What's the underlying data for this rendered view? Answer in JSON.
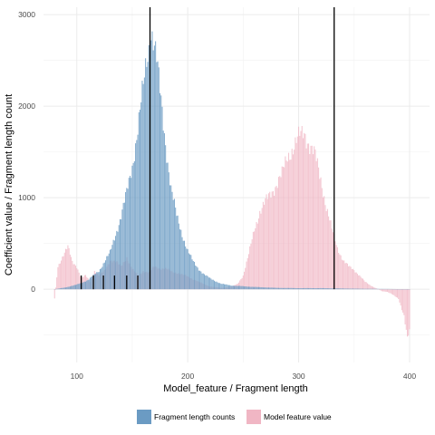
{
  "chart_data": {
    "type": "bar",
    "xlabel": "Model_feature / Fragment length",
    "ylabel": "Coefficient value / Fragment length count",
    "xlim": [
      70,
      418
    ],
    "ylim": [
      -800,
      3080
    ],
    "x_ticks": [
      100,
      200,
      300,
      400
    ],
    "y_ticks": [
      0,
      1000,
      2000,
      3000
    ],
    "x_minor_ticks": [
      150,
      250,
      350
    ],
    "y_minor_ticks": [
      -500,
      500,
      1500,
      2500
    ],
    "grid": true,
    "legend_position": "bottom",
    "series": [
      {
        "name": "Fragment length counts",
        "color": "#6b9bc3",
        "x_range": [
          80,
          400
        ],
        "anchors": [
          [
            80,
            0
          ],
          [
            90,
            20
          ],
          [
            100,
            50
          ],
          [
            110,
            100
          ],
          [
            120,
            200
          ],
          [
            130,
            400
          ],
          [
            140,
            800
          ],
          [
            145,
            1050
          ],
          [
            150,
            1350
          ],
          [
            155,
            1750
          ],
          [
            160,
            2200
          ],
          [
            163,
            2500
          ],
          [
            165,
            2650
          ],
          [
            167,
            2850
          ],
          [
            169,
            2750
          ],
          [
            172,
            2500
          ],
          [
            175,
            2150
          ],
          [
            180,
            1600
          ],
          [
            185,
            1100
          ],
          [
            190,
            800
          ],
          [
            195,
            600
          ],
          [
            200,
            420
          ],
          [
            205,
            300
          ],
          [
            210,
            220
          ],
          [
            215,
            160
          ],
          [
            220,
            120
          ],
          [
            230,
            60
          ],
          [
            240,
            40
          ],
          [
            260,
            25
          ],
          [
            280,
            15
          ],
          [
            300,
            12
          ],
          [
            320,
            12
          ],
          [
            340,
            8
          ],
          [
            360,
            5
          ],
          [
            380,
            3
          ],
          [
            400,
            0
          ]
        ]
      },
      {
        "name": "Model feature value",
        "color": "#f0b6c4",
        "x_range": [
          80,
          400
        ],
        "anchors": [
          [
            80,
            -100
          ],
          [
            83,
            250
          ],
          [
            88,
            380
          ],
          [
            92,
            460
          ],
          [
            96,
            300
          ],
          [
            100,
            250
          ],
          [
            104,
            120
          ],
          [
            108,
            150
          ],
          [
            112,
            80
          ],
          [
            116,
            200
          ],
          [
            120,
            150
          ],
          [
            125,
            200
          ],
          [
            130,
            320
          ],
          [
            135,
            300
          ],
          [
            140,
            250
          ],
          [
            145,
            350
          ],
          [
            150,
            220
          ],
          [
            155,
            150
          ],
          [
            160,
            200
          ],
          [
            165,
            180
          ],
          [
            170,
            250
          ],
          [
            175,
            230
          ],
          [
            180,
            220
          ],
          [
            190,
            180
          ],
          [
            200,
            140
          ],
          [
            210,
            80
          ],
          [
            220,
            30
          ],
          [
            230,
            15
          ],
          [
            240,
            30
          ],
          [
            245,
            60
          ],
          [
            250,
            150
          ],
          [
            255,
            380
          ],
          [
            260,
            650
          ],
          [
            265,
            850
          ],
          [
            270,
            950
          ],
          [
            275,
            1050
          ],
          [
            280,
            1150
          ],
          [
            285,
            1250
          ],
          [
            290,
            1450
          ],
          [
            295,
            1550
          ],
          [
            300,
            1650
          ],
          [
            305,
            1720
          ],
          [
            310,
            1580
          ],
          [
            315,
            1450
          ],
          [
            320,
            1200
          ],
          [
            325,
            900
          ],
          [
            330,
            650
          ],
          [
            335,
            450
          ],
          [
            340,
            320
          ],
          [
            345,
            250
          ],
          [
            350,
            210
          ],
          [
            355,
            150
          ],
          [
            360,
            80
          ],
          [
            365,
            40
          ],
          [
            370,
            10
          ],
          [
            375,
            -20
          ],
          [
            380,
            -30
          ],
          [
            385,
            -60
          ],
          [
            390,
            -100
          ],
          [
            395,
            -300
          ],
          [
            398,
            -550
          ],
          [
            400,
            -450
          ]
        ]
      }
    ],
    "vlines": [
      {
        "x": 166,
        "y_from": 0,
        "y_to": 3080
      },
      {
        "x": 332,
        "y_from": 0,
        "y_to": 3080
      }
    ],
    "short_vlines": [
      {
        "x": 104,
        "y_from": 0,
        "y_to": 150
      },
      {
        "x": 115,
        "y_from": 0,
        "y_to": 150
      },
      {
        "x": 124,
        "y_from": 0,
        "y_to": 150
      },
      {
        "x": 134,
        "y_from": 0,
        "y_to": 150
      },
      {
        "x": 145,
        "y_from": 0,
        "y_to": 150
      },
      {
        "x": 155,
        "y_from": 0,
        "y_to": 150
      }
    ]
  }
}
